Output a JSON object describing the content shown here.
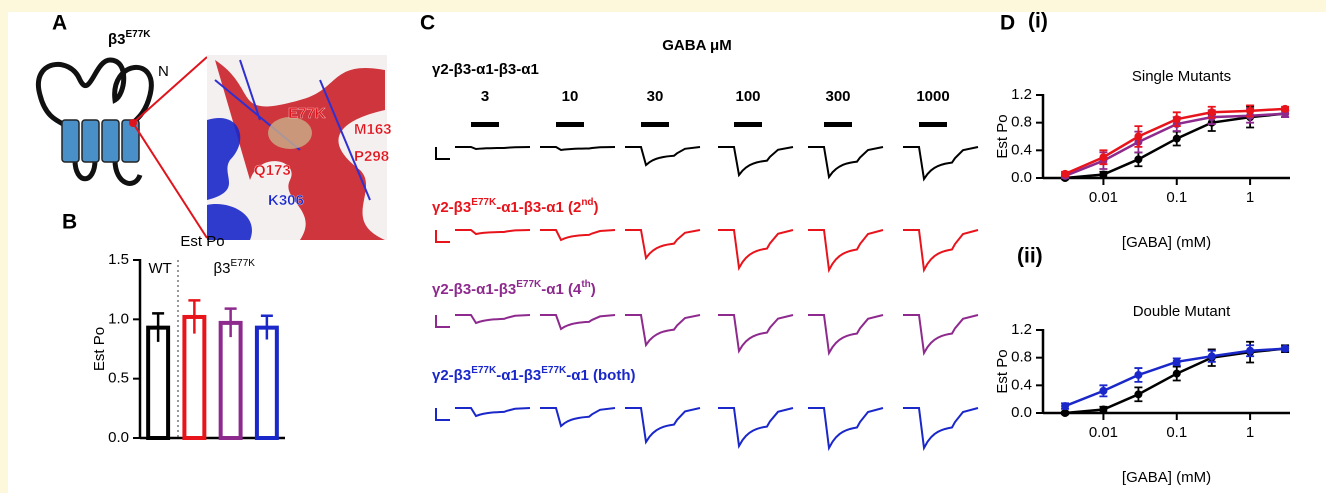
{
  "panel_labels": {
    "a": "A",
    "b": "B",
    "c": "C",
    "d": "D"
  },
  "panel_a": {
    "protein": "β3",
    "mutation": "E77K",
    "terminus": "N",
    "residues": [
      {
        "label": "E77K",
        "color": "#e0141c"
      },
      {
        "label": "M163",
        "color": "#e0141c"
      },
      {
        "label": "Q173",
        "color": "#e0141c"
      },
      {
        "label": "P298",
        "color": "#e0141c"
      },
      {
        "label": "K306",
        "color": "#1a27c9"
      }
    ]
  },
  "panel_c": {
    "axis_title": "GABA μM",
    "concentrations": [
      "3",
      "10",
      "30",
      "100",
      "300",
      "1000"
    ],
    "constructs": [
      {
        "color": "#000000",
        "label": [
          {
            "t": "γ2-β3-α1-β3-α1"
          }
        ]
      },
      {
        "color": "#e8141c",
        "label": [
          {
            "t": "γ2-β3"
          },
          {
            "t": "E77K",
            "sup": true
          },
          {
            "t": "-α1-β3-α1 (2"
          },
          {
            "t": "nd",
            "sup": true
          },
          {
            "t": ")"
          }
        ]
      },
      {
        "color": "#8e2a8e",
        "label": [
          {
            "t": "γ2-β3-α1-β3"
          },
          {
            "t": "E77K",
            "sup": true
          },
          {
            "t": "-α1 (4"
          },
          {
            "t": "th",
            "sup": true
          },
          {
            "t": ")"
          }
        ]
      },
      {
        "color": "#1a27c9",
        "label": [
          {
            "t": "γ2-β3"
          },
          {
            "t": "E77K",
            "sup": true
          },
          {
            "t": "-α1-β3"
          },
          {
            "t": "E77K",
            "sup": true
          },
          {
            "t": "-α1 (both)"
          }
        ]
      }
    ]
  },
  "chart_data": [
    {
      "type": "bar",
      "title": "Est Po",
      "y_label": "Est Po",
      "annotations": [
        {
          "t": "WT"
        },
        {
          "t": "β3",
          "sup": "E77K"
        }
      ],
      "categories": [
        null,
        null,
        null,
        null
      ],
      "values": [
        0.93,
        1.02,
        0.97,
        0.93
      ],
      "errors": [
        0.12,
        0.14,
        0.12,
        0.1
      ],
      "colors": [
        "#000000",
        "#e8141c",
        "#8e2a8e",
        "#1a27c9"
      ],
      "ylim": [
        0,
        1.5
      ],
      "yticks": [
        {
          "value": 0,
          "label": "0.0"
        },
        0.5,
        {
          "value": 1,
          "label": "1.0"
        },
        1.5
      ]
    },
    {
      "type": "line",
      "label": "(i)",
      "title": "Single Mutants",
      "x_label": "[GABA] (mM)",
      "y_label": "Est Po",
      "log_x": true,
      "x": [
        0.003,
        0.01,
        0.03,
        0.1,
        0.3,
        1,
        3
      ],
      "xlim": [
        0.0015,
        3.5
      ],
      "xticks": [
        0.01,
        0.1,
        1
      ],
      "ylim": [
        0,
        1.2
      ],
      "yticks": [
        {
          "value": 0,
          "label": "0.0"
        },
        0.4,
        0.8,
        1.2
      ],
      "series": [
        {
          "color": "#000000",
          "values": [
            0.0,
            0.05,
            0.27,
            0.57,
            0.8,
            0.88,
            0.93
          ],
          "errors": [
            0.02,
            0.04,
            0.1,
            0.1,
            0.12,
            0.15,
            0.05
          ]
        },
        {
          "color": "#8e2a8e",
          "values": [
            0.03,
            0.25,
            0.52,
            0.78,
            0.88,
            0.9,
            0.93
          ],
          "errors": [
            0.03,
            0.12,
            0.15,
            0.1,
            0.1,
            0.1,
            0.05
          ]
        },
        {
          "color": "#e8141c",
          "values": [
            0.06,
            0.3,
            0.6,
            0.85,
            0.95,
            0.97,
            1.0
          ],
          "errors": [
            0.03,
            0.1,
            0.15,
            0.1,
            0.08,
            0.08,
            0.03
          ]
        }
      ]
    },
    {
      "type": "line",
      "label": "(ii)",
      "title": "Double Mutant",
      "x_label": "[GABA] (mM)",
      "y_label": "Est Po",
      "log_x": true,
      "x": [
        0.003,
        0.01,
        0.03,
        0.1,
        0.3,
        1,
        3
      ],
      "xlim": [
        0.0015,
        3.5
      ],
      "xticks": [
        0.01,
        0.1,
        1
      ],
      "ylim": [
        0,
        1.2
      ],
      "yticks": [
        {
          "value": 0,
          "label": "0.0"
        },
        0.4,
        0.8,
        1.2
      ],
      "series": [
        {
          "color": "#000000",
          "values": [
            0.0,
            0.05,
            0.27,
            0.57,
            0.8,
            0.88,
            0.93
          ],
          "errors": [
            0.02,
            0.04,
            0.1,
            0.1,
            0.12,
            0.15,
            0.05
          ]
        },
        {
          "color": "#1a27c9",
          "values": [
            0.1,
            0.32,
            0.55,
            0.74,
            0.82,
            0.9,
            0.93
          ],
          "errors": [
            0.04,
            0.08,
            0.1,
            0.05,
            0.08,
            0.08,
            0.03
          ]
        }
      ]
    }
  ]
}
